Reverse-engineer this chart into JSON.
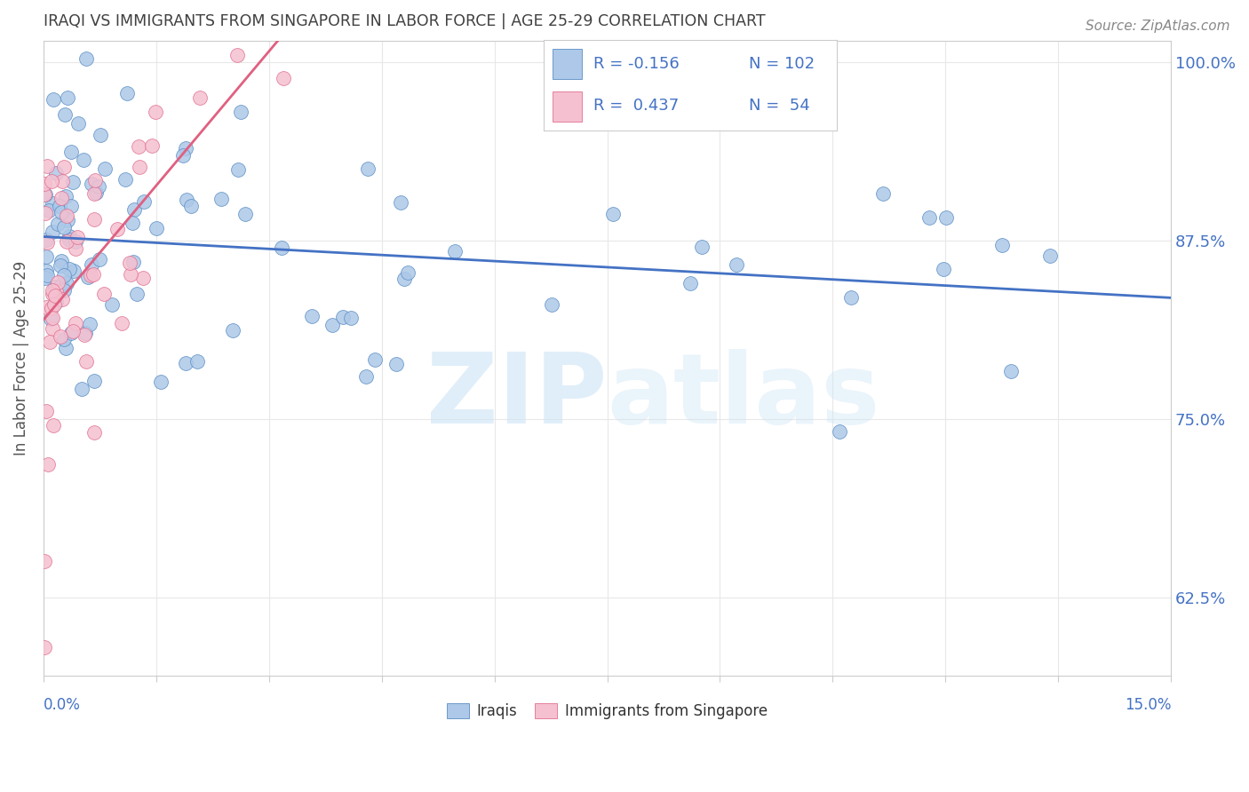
{
  "title": "IRAQI VS IMMIGRANTS FROM SINGAPORE IN LABOR FORCE | AGE 25-29 CORRELATION CHART",
  "source": "Source: ZipAtlas.com",
  "ylabel": "In Labor Force | Age 25-29",
  "ylabel_right_ticks": [
    62.5,
    75.0,
    87.5,
    100.0
  ],
  "xlabel_ticks": [
    0.0,
    1.5,
    3.0,
    4.5,
    6.0,
    7.5,
    9.0,
    10.5,
    12.0,
    13.5,
    15.0
  ],
  "xmin": 0.0,
  "xmax": 15.0,
  "ymin": 57.0,
  "ymax": 101.5,
  "blue_R": -0.156,
  "blue_N": 102,
  "pink_R": 0.437,
  "pink_N": 54,
  "blue_color": "#adc8e8",
  "blue_edge_color": "#5b8ec4",
  "blue_line_color": "#4472c4",
  "pink_color": "#f5c0d0",
  "pink_edge_color": "#e07090",
  "pink_line_color": "#e06080",
  "legend_text_color": "#4472c4",
  "axis_label_color": "#4472c4",
  "title_color": "#404040",
  "watermark_color": "#cce4f5",
  "grid_color": "#e8e8e8"
}
